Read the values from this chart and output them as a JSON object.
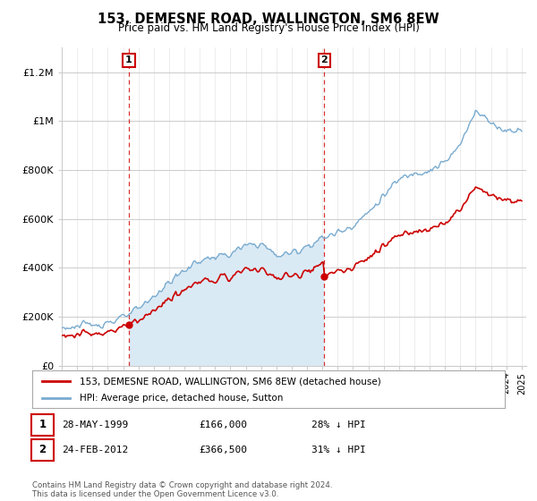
{
  "title": "153, DEMESNE ROAD, WALLINGTON, SM6 8EW",
  "subtitle": "Price paid vs. HM Land Registry's House Price Index (HPI)",
  "ylim": [
    0,
    1300000
  ],
  "yticks": [
    0,
    200000,
    400000,
    600000,
    800000,
    1000000,
    1200000
  ],
  "ytick_labels": [
    "£0",
    "£200K",
    "£400K",
    "£600K",
    "£800K",
    "£1M",
    "£1.2M"
  ],
  "legend_line1": "153, DEMESNE ROAD, WALLINGTON, SM6 8EW (detached house)",
  "legend_line2": "HPI: Average price, detached house, Sutton",
  "sale1_label": "1",
  "sale1_date": "28-MAY-1999",
  "sale1_price": "£166,000",
  "sale1_note": "28% ↓ HPI",
  "sale2_label": "2",
  "sale2_date": "24-FEB-2012",
  "sale2_price": "£366,500",
  "sale2_note": "31% ↓ HPI",
  "footnote": "Contains HM Land Registry data © Crown copyright and database right 2024.\nThis data is licensed under the Open Government Licence v3.0.",
  "red_color": "#cc0000",
  "blue_color": "#7aabcf",
  "blue_fill": "#daeaf5",
  "grid_color": "#cccccc",
  "bg_color": "#ffffff",
  "sale1_year_f": 1999.37,
  "sale1_price_v": 166000,
  "sale2_year_f": 2012.12,
  "sale2_price_v": 366500
}
